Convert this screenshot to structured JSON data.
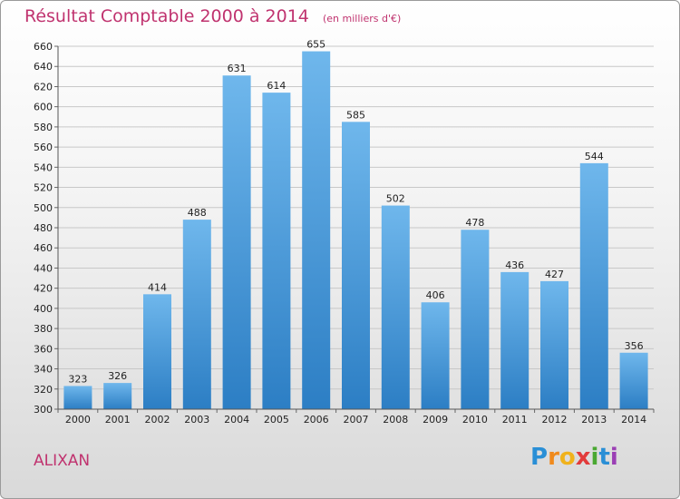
{
  "header": {
    "title": "Résultat Comptable 2000 à 2014",
    "subtitle": "(en milliers d'€)"
  },
  "footer": {
    "commune": "ALIXAN",
    "logo_letters": [
      "P",
      "r",
      "o",
      "x",
      "i",
      "t",
      "i"
    ],
    "logo_colors": [
      "#2a8fd6",
      "#f08a1c",
      "#f0b21c",
      "#e23b3b",
      "#4aa832",
      "#2a8fd6",
      "#9b3fb5"
    ]
  },
  "colors": {
    "bar_light": "#6fb7ec",
    "bar_dark": "#2c7ec4",
    "title": "#c0336f"
  },
  "chart_data": {
    "type": "bar",
    "title": "Résultat Comptable 2000 à 2014",
    "subtitle": "(en milliers d'€)",
    "categories": [
      "2000",
      "2001",
      "2002",
      "2003",
      "2004",
      "2005",
      "2006",
      "2007",
      "2008",
      "2009",
      "2010",
      "2011",
      "2012",
      "2013",
      "2014"
    ],
    "values": [
      323,
      326,
      414,
      488,
      631,
      614,
      655,
      585,
      502,
      406,
      478,
      436,
      427,
      544,
      356
    ],
    "ylim": [
      300,
      660
    ],
    "ytick_step": 20,
    "grid": true,
    "legend": "none"
  }
}
